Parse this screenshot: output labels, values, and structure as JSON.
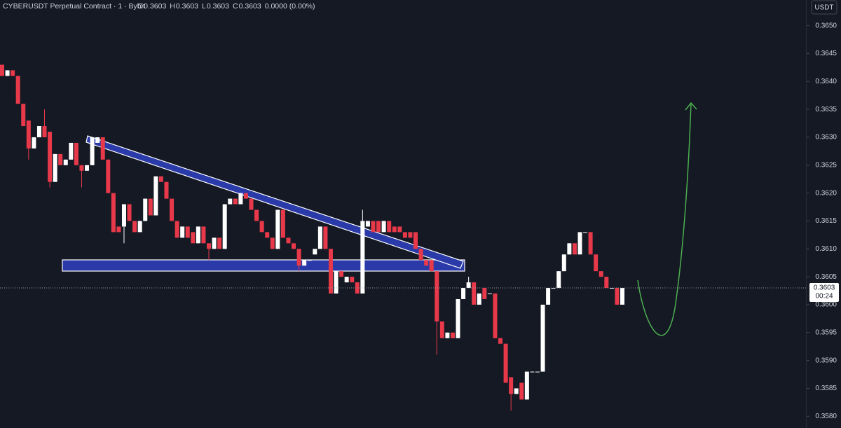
{
  "chart_data": {
    "type": "candlestick",
    "legend": {
      "symbol": "CYBERUSDT Perpetual Contract · 1 · Bybit",
      "ohlc": [
        {
          "label": "O",
          "value": 0.3603
        },
        {
          "label": "H",
          "value": 0.3603
        },
        {
          "label": "L",
          "value": 0.3603
        },
        {
          "label": "C",
          "value": 0.3603
        }
      ],
      "change": "0.0000 (0.00%)"
    },
    "currency": "USDT",
    "last_price": 0.3603,
    "countdown": "00:24",
    "up_color": "#ffffff",
    "down_color": "#e8394a",
    "grid": false,
    "ylim": [
      0.35779,
      0.36546
    ],
    "yticks": [
      {
        "value": 0.365,
        "label": "0.3650"
      },
      0.3645,
      {
        "value": 0.364,
        "label": "0.3640"
      },
      0.3635,
      {
        "value": 0.363,
        "label": "0.3630"
      },
      0.3625,
      {
        "value": 0.362,
        "label": "0.3620"
      },
      0.3615,
      {
        "value": 0.361,
        "label": "0.3610"
      },
      0.3605,
      {
        "value": 0.36,
        "label": "0.3600"
      },
      0.3595,
      {
        "value": 0.359,
        "label": "0.3590"
      },
      0.3585,
      {
        "value": 0.358,
        "label": "0.3580"
      }
    ],
    "open": [
      0.3643,
      0.3641,
      0.3642,
      0.3641,
      0.3636,
      0.3633,
      0.3628,
      0.363,
      0.3632,
      0.3631,
      0.3622,
      0.3627,
      0.3625,
      0.3626,
      0.3629,
      0.3625,
      0.3624,
      0.3625,
      0.3629,
      0.363,
      0.3626,
      0.362,
      0.3614,
      0.3614,
      0.3618,
      0.3615,
      0.3613,
      0.3615,
      0.3619,
      0.3616,
      0.3623,
      0.3622,
      0.3619,
      0.3615,
      0.3612,
      0.3614,
      0.3613,
      0.3611,
      0.3614,
      0.3611,
      0.361,
      0.3612,
      0.361,
      0.3618,
      0.3619,
      0.3618,
      0.362,
      0.3619,
      0.3617,
      0.3615,
      0.3613,
      0.3612,
      0.361,
      0.3617,
      0.3612,
      0.3611,
      0.361,
      0.3607,
      0.3608,
      0.3609,
      0.361,
      0.3614,
      0.361,
      0.3602,
      0.3606,
      0.3604,
      0.3605,
      0.3604,
      0.3602,
      0.3614,
      0.3615,
      0.3615,
      0.3613,
      0.3615,
      0.3614,
      0.3614,
      0.3613,
      0.3613,
      0.3613,
      0.361,
      0.3608,
      0.3608,
      0.3606,
      0.3597,
      0.3594,
      0.3595,
      0.3594,
      0.3601,
      0.3603,
      0.3604,
      0.36,
      0.3603,
      0.3602,
      0.3602,
      0.3594,
      0.3593,
      0.3587,
      0.3584,
      0.3586,
      0.3583,
      0.3588,
      0.3588,
      0.3588,
      0.36,
      0.3603,
      0.3603,
      0.3606,
      0.3609,
      0.3611,
      0.3609,
      0.3613,
      0.3613,
      0.3609,
      0.3606,
      0.3605,
      0.3603,
      0.3603,
      0.36
    ],
    "high": [
      0.3643,
      0.3642,
      0.3642,
      0.3641,
      0.3636,
      0.3633,
      0.363,
      0.3632,
      0.3635,
      0.3631,
      0.3627,
      0.3627,
      0.3626,
      0.3629,
      0.3629,
      0.3625,
      0.3625,
      0.363,
      0.363,
      0.363,
      0.3626,
      0.362,
      0.3614,
      0.3618,
      0.3618,
      0.3615,
      0.3615,
      0.3619,
      0.3619,
      0.3623,
      0.3623,
      0.3622,
      0.3619,
      0.3615,
      0.3614,
      0.3614,
      0.3613,
      0.3614,
      0.3614,
      0.3611,
      0.3612,
      0.3612,
      0.3618,
      0.3619,
      0.3619,
      0.362,
      0.362,
      0.3619,
      0.3617,
      0.3615,
      0.3613,
      0.3612,
      0.3617,
      0.3617,
      0.3612,
      0.3611,
      0.361,
      0.3608,
      0.3608,
      0.361,
      0.3614,
      0.3614,
      0.361,
      0.3606,
      0.3606,
      0.3605,
      0.3605,
      0.3604,
      0.3617,
      0.3615,
      0.3615,
      0.3615,
      0.3615,
      0.3615,
      0.3614,
      0.3614,
      0.3613,
      0.3613,
      0.3613,
      0.361,
      0.3608,
      0.3608,
      0.3606,
      0.3597,
      0.3595,
      0.3595,
      0.3601,
      0.3603,
      0.3605,
      0.3604,
      0.3602,
      0.3603,
      0.3602,
      0.3602,
      0.3594,
      0.3593,
      0.3587,
      0.3585,
      0.3586,
      0.3588,
      0.3588,
      0.3588,
      0.36,
      0.3603,
      0.3603,
      0.3606,
      0.3609,
      0.3611,
      0.3611,
      0.3613,
      0.3613,
      0.3613,
      0.3609,
      0.3606,
      0.3605,
      0.3603,
      0.3603,
      0.3603
    ],
    "low": [
      0.3641,
      0.3641,
      0.3641,
      0.3636,
      0.3632,
      0.3626,
      0.3628,
      0.363,
      0.363,
      0.3621,
      0.3622,
      0.3625,
      0.3625,
      0.3626,
      0.3625,
      0.3621,
      0.3624,
      0.3625,
      0.3629,
      0.3626,
      0.362,
      0.3613,
      0.3613,
      0.3611,
      0.3615,
      0.3613,
      0.3613,
      0.3615,
      0.3616,
      0.3616,
      0.3622,
      0.3619,
      0.3615,
      0.3612,
      0.3612,
      0.3612,
      0.3611,
      0.3611,
      0.3611,
      0.3608,
      0.361,
      0.361,
      0.361,
      0.3618,
      0.3618,
      0.3618,
      0.3619,
      0.3617,
      0.3615,
      0.3613,
      0.3612,
      0.361,
      0.361,
      0.3612,
      0.3611,
      0.361,
      0.3606,
      0.3607,
      0.3608,
      0.3609,
      0.361,
      0.361,
      0.3602,
      0.3602,
      0.3605,
      0.3604,
      0.3604,
      0.3602,
      0.3602,
      0.3614,
      0.3613,
      0.3613,
      0.3613,
      0.3613,
      0.3613,
      0.3613,
      0.3612,
      0.3612,
      0.361,
      0.3608,
      0.3607,
      0.3606,
      0.3591,
      0.3594,
      0.3594,
      0.3594,
      0.3594,
      0.3601,
      0.3603,
      0.36,
      0.36,
      0.3601,
      0.3602,
      0.3594,
      0.3593,
      0.3586,
      0.3581,
      0.3584,
      0.3583,
      0.3583,
      0.3588,
      0.3588,
      0.3588,
      0.36,
      0.3603,
      0.3603,
      0.3606,
      0.3609,
      0.3609,
      0.3609,
      0.3613,
      0.3609,
      0.3606,
      0.3605,
      0.3603,
      0.3603,
      0.36,
      0.36
    ],
    "close": [
      0.3641,
      0.3642,
      0.3641,
      0.3636,
      0.3632,
      0.3628,
      0.363,
      0.3632,
      0.363,
      0.3622,
      0.3627,
      0.3625,
      0.3626,
      0.3629,
      0.3625,
      0.3624,
      0.3625,
      0.363,
      0.363,
      0.3626,
      0.362,
      0.3613,
      0.3613,
      0.3618,
      0.3615,
      0.3613,
      0.3615,
      0.3619,
      0.3616,
      0.3623,
      0.3622,
      0.3619,
      0.3615,
      0.3612,
      0.3614,
      0.3612,
      0.3611,
      0.3614,
      0.3611,
      0.361,
      0.3612,
      0.361,
      0.3618,
      0.3619,
      0.3618,
      0.362,
      0.3619,
      0.3617,
      0.3615,
      0.3613,
      0.3612,
      0.361,
      0.3617,
      0.3612,
      0.3611,
      0.361,
      0.3607,
      0.3608,
      0.3608,
      0.361,
      0.3614,
      0.361,
      0.3602,
      0.3606,
      0.3605,
      0.3605,
      0.3604,
      0.3602,
      0.3615,
      0.3615,
      0.3613,
      0.3613,
      0.3615,
      0.3613,
      0.3613,
      0.3613,
      0.3612,
      0.3612,
      0.361,
      0.3608,
      0.3607,
      0.3606,
      0.3597,
      0.3594,
      0.3595,
      0.3594,
      0.3601,
      0.3603,
      0.3604,
      0.36,
      0.3602,
      0.3601,
      0.3602,
      0.3594,
      0.3593,
      0.3586,
      0.3584,
      0.3585,
      0.3583,
      0.3588,
      0.3588,
      0.3588,
      0.36,
      0.3603,
      0.3603,
      0.3606,
      0.3609,
      0.3611,
      0.3609,
      0.3613,
      0.3613,
      0.3609,
      0.3606,
      0.3605,
      0.3603,
      0.3603,
      0.36,
      0.3603
    ]
  }
}
